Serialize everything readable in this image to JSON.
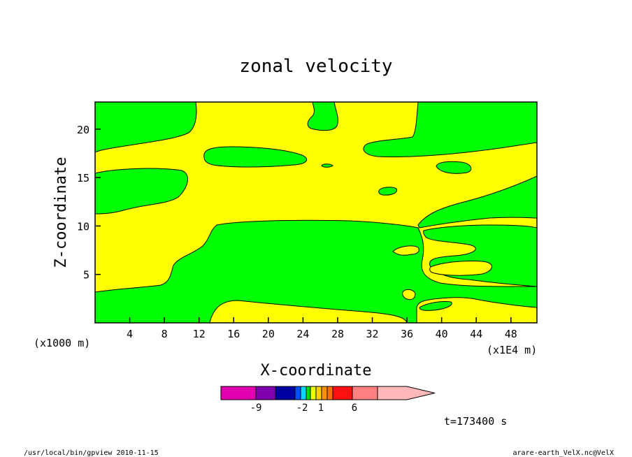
{
  "chart_data": {
    "type": "contour",
    "title": "zonal velocity",
    "xlabel": "X-coordinate",
    "ylabel": "Z-coordinate",
    "x_unit": "(x1E4 m)",
    "y_unit": "(x1000 m)",
    "xlim": [
      0,
      51
    ],
    "ylim": [
      0,
      22.8
    ],
    "x_ticks": [
      4,
      8,
      12,
      16,
      20,
      24,
      28,
      32,
      36,
      40,
      44,
      48
    ],
    "y_ticks": [
      5,
      10,
      15,
      20
    ],
    "grid": false,
    "colorbar": {
      "colors": [
        "#e000b0",
        "#8000b0",
        "#0000a0",
        "#0050ff",
        "#00d8ff",
        "#00e000",
        "#e8ff00",
        "#ffd000",
        "#ff9000",
        "#ff7000",
        "#ff1010",
        "#ff8080",
        "#ffb8b8"
      ],
      "labels": [
        "-9",
        "-2",
        "1",
        "6"
      ]
    },
    "regions": [
      {
        "color": "#00ff00",
        "description": "negative zonal velocity"
      },
      {
        "color": "#ffff00",
        "description": "positive zonal velocity"
      }
    ],
    "time_label": "t=173400 s"
  },
  "footer": {
    "left": "/usr/local/bin/gpview  2010-11-15",
    "right": "arare-earth_VelX.nc@VelX"
  },
  "colors": {
    "background": "#ffffff",
    "green": "#00ff00",
    "yellow": "#ffff00"
  }
}
